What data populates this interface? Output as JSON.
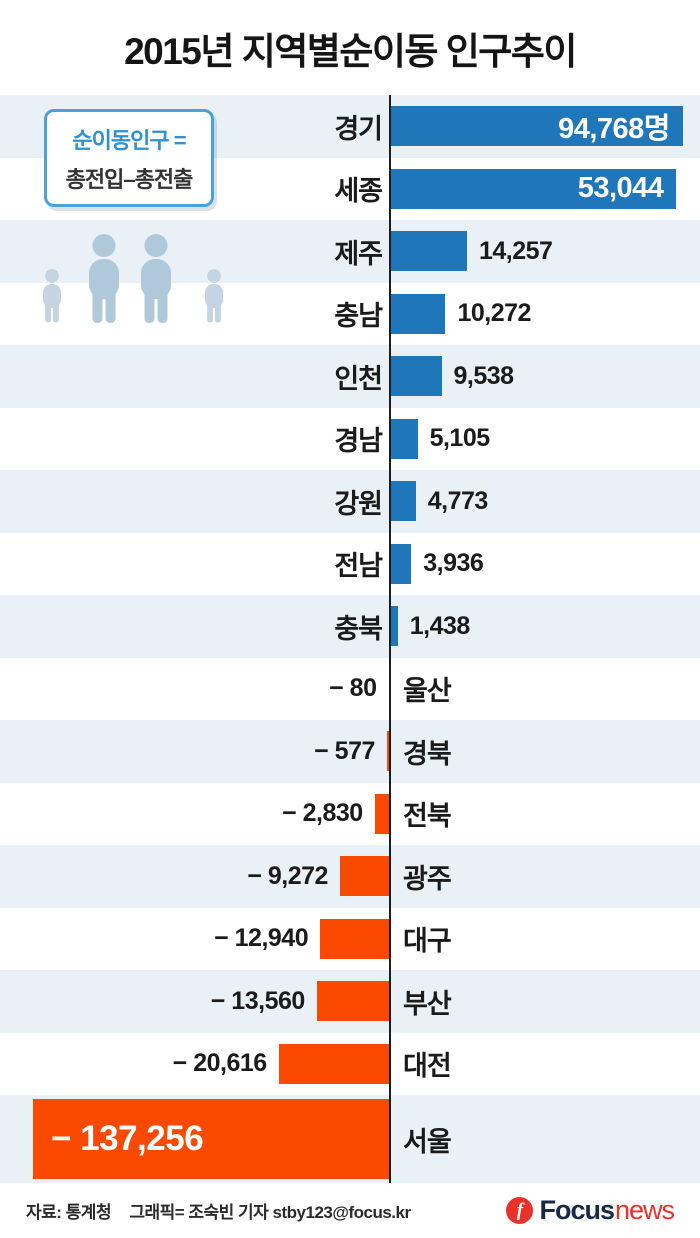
{
  "title": {
    "pre": "2015년 지역별 ",
    "bold": "순이동 인구",
    "post": " 추이"
  },
  "legend": {
    "line1": "순이동인구 =",
    "line2": "총전입–총전출"
  },
  "chart_data": {
    "type": "bar",
    "variant": "horizontal-diverging",
    "title": "2015년 지역별 순이동 인구 추이",
    "unit": "명",
    "categories": [
      "경기",
      "세종",
      "제주",
      "충남",
      "인천",
      "경남",
      "강원",
      "전남",
      "충북",
      "울산",
      "경북",
      "전북",
      "광주",
      "대구",
      "부산",
      "대전",
      "서울"
    ],
    "values": [
      94768,
      53044,
      14257,
      10272,
      9538,
      5105,
      4773,
      3936,
      1438,
      -80,
      -577,
      -2830,
      -9272,
      -12940,
      -13560,
      -20616,
      -137256
    ],
    "labels": [
      "94,768명",
      "53,044",
      "14,257",
      "10,272",
      "9,538",
      "5,105",
      "4,773",
      "3,936",
      "1,438",
      "− 80",
      "− 577",
      "− 2,830",
      "− 9,272",
      "− 12,940",
      "− 13,560",
      "− 20,616",
      "− 137,256"
    ],
    "positive_color": "#1f76b8",
    "negative_color": "#fb4a00",
    "stripe_color": "#e9f0f6",
    "axis_color": "#1c1c1c",
    "legend_position": "none",
    "grid": false
  },
  "footer": {
    "source": "자료: 통계청",
    "credit": "그래픽= 조숙빈 기자 stby123@focus.kr",
    "logo_glyph": "f",
    "logo_focus": "Focus",
    "logo_news": "news"
  }
}
